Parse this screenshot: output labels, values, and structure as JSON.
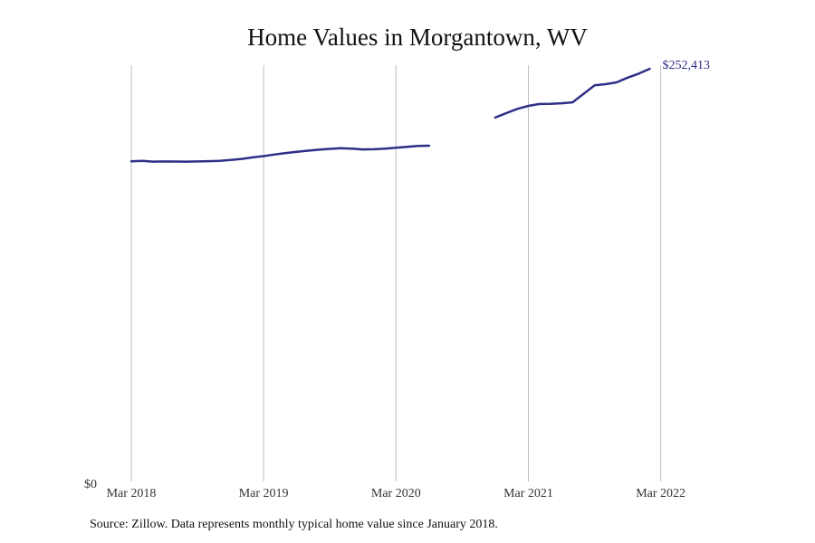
{
  "chart_data": {
    "type": "line",
    "title": "Home Values in Morgantown, WV",
    "xlabel": "",
    "ylabel": "",
    "y_tick_label": "$0",
    "ylim": [
      0,
      252413
    ],
    "x_ticks": [
      {
        "label": "Mar 2018",
        "month_index": 2
      },
      {
        "label": "Mar 2019",
        "month_index": 14
      },
      {
        "label": "Mar 2020",
        "month_index": 26
      },
      {
        "label": "Mar 2021",
        "month_index": 38
      },
      {
        "label": "Mar 2022",
        "month_index": 50
      }
    ],
    "grid": "vertical",
    "series": [
      {
        "name": "Typical home value",
        "color": "#2e2e87",
        "end_label": "$252,413",
        "segments": [
          {
            "start_month_index": 2,
            "values": [
              195800,
              196100,
              195600,
              195750,
              195700,
              195600,
              195750,
              195900,
              196100,
              196600,
              197300,
              198200,
              199000,
              200000,
              200900,
              201650,
              202300,
              202900,
              203450,
              203800,
              203550,
              203100,
              203200,
              203600,
              204100,
              204700,
              205200,
              205350
            ]
          },
          {
            "start_month_index": 35,
            "values": [
              222600,
              225300,
              227900,
              229700,
              230900,
              231000,
              231300,
              231900,
              237000,
              242300,
              243000,
              244100,
              247000,
              249400,
              252413
            ]
          }
        ]
      }
    ]
  },
  "source": {
    "text": "Source: Zillow. Data represents monthly typical home value since January 2018."
  }
}
